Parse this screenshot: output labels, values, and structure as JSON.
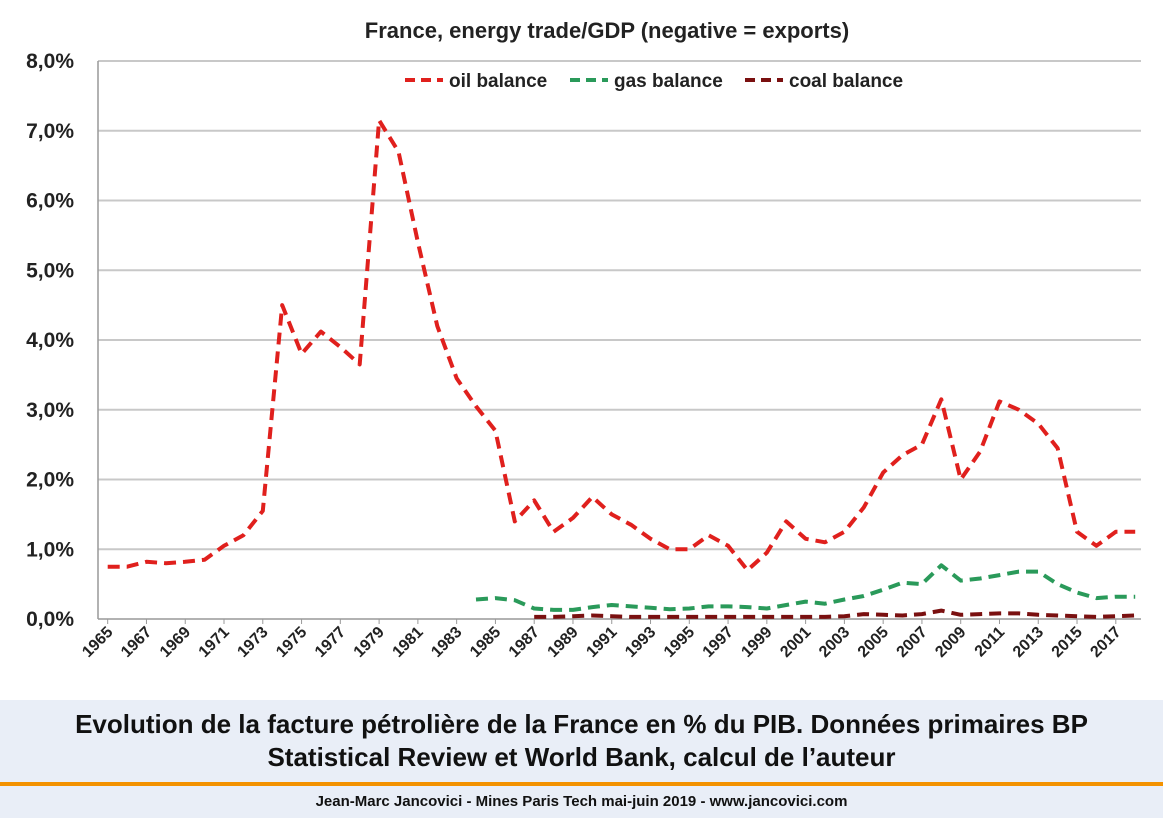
{
  "caption": {
    "line1": "Evolution de la facture pétrolière de la France en % du PIB. Données primaires BP",
    "line2": "Statistical Review et World Bank, calcul de l’auteur"
  },
  "footer": "Jean-Marc Jancovici - Mines Paris Tech mai-juin 2019 - www.jancovici.com",
  "chart_data": {
    "type": "line",
    "title": "France, energy trade/GDP (negative = exports)",
    "xlabel": "",
    "ylabel": "",
    "ylim": [
      0,
      8
    ],
    "y_ticks": [
      "0,0%",
      "1,0%",
      "2,0%",
      "3,0%",
      "4,0%",
      "5,0%",
      "6,0%",
      "7,0%",
      "8,0%"
    ],
    "x_ticks": [
      "1965",
      "1967",
      "1969",
      "1971",
      "1973",
      "1975",
      "1977",
      "1979",
      "1981",
      "1983",
      "1985",
      "1987",
      "1989",
      "1991",
      "1993",
      "1995",
      "1997",
      "1999",
      "2001",
      "2003",
      "2005",
      "2007",
      "2009",
      "2011",
      "2013",
      "2015",
      "2017"
    ],
    "xlim": [
      1965,
      2018
    ],
    "grid": "horizontal",
    "legend_position": "top-center",
    "series": [
      {
        "name": "oil balance",
        "color": "#e0201d",
        "x": [
          1965,
          1966,
          1967,
          1968,
          1969,
          1970,
          1971,
          1972,
          1973,
          1974,
          1975,
          1976,
          1977,
          1978,
          1979,
          1980,
          1981,
          1982,
          1983,
          1984,
          1985,
          1986,
          1987,
          1988,
          1989,
          1990,
          1991,
          1992,
          1993,
          1994,
          1995,
          1996,
          1997,
          1998,
          1999,
          2000,
          2001,
          2002,
          2003,
          2004,
          2005,
          2006,
          2007,
          2008,
          2009,
          2010,
          2011,
          2012,
          2013,
          2014,
          2015,
          2016,
          2017,
          2018
        ],
        "values": [
          0.75,
          0.75,
          0.82,
          0.8,
          0.82,
          0.85,
          1.05,
          1.2,
          1.55,
          4.5,
          3.8,
          4.12,
          3.9,
          3.65,
          7.15,
          6.7,
          5.4,
          4.2,
          3.45,
          3.05,
          2.7,
          1.4,
          1.7,
          1.25,
          1.45,
          1.75,
          1.5,
          1.35,
          1.15,
          1.0,
          1.0,
          1.2,
          1.05,
          0.7,
          0.95,
          1.4,
          1.15,
          1.1,
          1.25,
          1.6,
          2.1,
          2.35,
          2.5,
          3.15,
          2.0,
          2.4,
          3.12,
          3.0,
          2.8,
          2.45,
          1.25,
          1.05,
          1.25,
          1.25
        ]
      },
      {
        "name": "gas balance",
        "color": "#2a9a5a",
        "x": [
          1984,
          1985,
          1986,
          1987,
          1988,
          1989,
          1990,
          1991,
          1992,
          1993,
          1994,
          1995,
          1996,
          1997,
          1998,
          1999,
          2000,
          2001,
          2002,
          2003,
          2004,
          2005,
          2006,
          2007,
          2008,
          2009,
          2010,
          2011,
          2012,
          2013,
          2014,
          2015,
          2016,
          2017,
          2018
        ],
        "values": [
          0.28,
          0.3,
          0.27,
          0.15,
          0.13,
          0.13,
          0.17,
          0.2,
          0.18,
          0.16,
          0.14,
          0.15,
          0.18,
          0.18,
          0.17,
          0.15,
          0.2,
          0.25,
          0.22,
          0.28,
          0.33,
          0.42,
          0.52,
          0.5,
          0.77,
          0.55,
          0.58,
          0.63,
          0.68,
          0.68,
          0.5,
          0.38,
          0.3,
          0.32,
          0.32
        ]
      },
      {
        "name": "coal balance",
        "color": "#7a1010",
        "x": [
          1987,
          1988,
          1989,
          1990,
          1991,
          1992,
          1993,
          1994,
          1995,
          1996,
          1997,
          1998,
          1999,
          2000,
          2001,
          2002,
          2003,
          2004,
          2005,
          2006,
          2007,
          2008,
          2009,
          2010,
          2011,
          2012,
          2013,
          2014,
          2015,
          2016,
          2017,
          2018
        ],
        "values": [
          0.03,
          0.03,
          0.04,
          0.05,
          0.04,
          0.03,
          0.03,
          0.03,
          0.03,
          0.03,
          0.03,
          0.03,
          0.03,
          0.03,
          0.03,
          0.03,
          0.04,
          0.07,
          0.06,
          0.05,
          0.07,
          0.12,
          0.06,
          0.07,
          0.08,
          0.08,
          0.06,
          0.05,
          0.04,
          0.03,
          0.04,
          0.05
        ]
      }
    ]
  }
}
